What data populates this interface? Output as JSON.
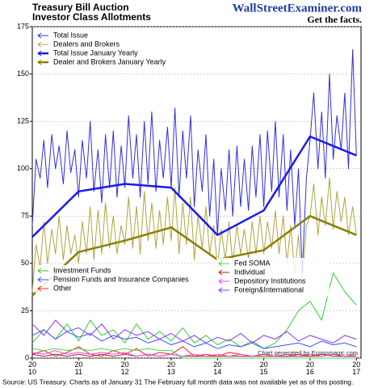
{
  "title": "Treasury Bill Auction",
  "subtitle": "Investor Class Allotments",
  "site": "WallStreetExaminer.com",
  "tagline": "Get the facts.",
  "watermark": "Chart generated by Economagic.com",
  "source": "Source: US Treasury. Charts as of January 31 The February full month data was not available yet as of this posting.",
  "chart_data": {
    "type": "line",
    "x": [
      2010,
      2010.08,
      2010.17,
      2010.25,
      2010.33,
      2010.42,
      2010.5,
      2010.58,
      2010.67,
      2010.75,
      2010.83,
      2010.92,
      2011,
      2011.08,
      2011.17,
      2011.25,
      2011.33,
      2011.42,
      2011.5,
      2011.58,
      2011.67,
      2011.75,
      2011.83,
      2011.92,
      2012,
      2012.08,
      2012.17,
      2012.25,
      2012.33,
      2012.42,
      2012.5,
      2012.58,
      2012.67,
      2012.75,
      2012.83,
      2012.92,
      2013,
      2013.08,
      2013.17,
      2013.25,
      2013.33,
      2013.42,
      2013.5,
      2013.58,
      2013.67,
      2013.75,
      2013.83,
      2013.92,
      2014,
      2014.08,
      2014.17,
      2014.25,
      2014.33,
      2014.42,
      2014.5,
      2014.58,
      2014.67,
      2014.75,
      2014.83,
      2014.92,
      2015,
      2015.08,
      2015.17,
      2015.25,
      2015.33,
      2015.42,
      2015.5,
      2015.58,
      2015.67,
      2015.75,
      2015.83,
      2015.92,
      2016,
      2016.08,
      2016.17,
      2016.25,
      2016.33,
      2016.42,
      2016.5,
      2016.58,
      2016.67,
      2016.75,
      2016.83,
      2016.92,
      2017
    ],
    "xlim": [
      2010,
      2017.1
    ],
    "xticks": [
      {
        "value": 2010,
        "label": "20\n10"
      },
      {
        "value": 2011,
        "label": "20\n11"
      },
      {
        "value": 2012,
        "label": "20\n12"
      },
      {
        "value": 2013,
        "label": "20\n13"
      },
      {
        "value": 2014,
        "label": "20\n14"
      },
      {
        "value": 2015,
        "label": "20\n15"
      },
      {
        "value": 2016,
        "label": "20\n16"
      },
      {
        "value": 2017,
        "label": "20\n17"
      }
    ],
    "ylim": [
      0,
      175
    ],
    "yticks": [
      0,
      25,
      50,
      75,
      100,
      125,
      150,
      175
    ],
    "grid": true,
    "series": [
      {
        "name": "Total Issue",
        "color": "#3030e0",
        "width": 1,
        "values": [
          70,
          105,
          95,
          115,
          90,
          118,
          100,
          112,
          92,
          120,
          98,
          110,
          85,
          115,
          95,
          125,
          88,
          110,
          82,
          118,
          90,
          120,
          85,
          112,
          90,
          128,
          95,
          118,
          85,
          125,
          92,
          130,
          88,
          115,
          95,
          122,
          90,
          132,
          85,
          120,
          95,
          128,
          80,
          110,
          88,
          118,
          75,
          105,
          65,
          100,
          78,
          110,
          75,
          112,
          80,
          105,
          78,
          112,
          85,
          118,
          80,
          120,
          88,
          125,
          85,
          118,
          78,
          110,
          70,
          100,
          45,
          95,
          115,
          140,
          100,
          130,
          95,
          150,
          105,
          128,
          110,
          140,
          100,
          163,
          107
        ]
      },
      {
        "name": "Dealers and Brokers",
        "color": "#b0a440",
        "width": 1,
        "values": [
          35,
          60,
          48,
          72,
          50,
          68,
          55,
          75,
          52,
          70,
          55,
          65,
          50,
          72,
          55,
          80,
          52,
          78,
          55,
          82,
          58,
          75,
          55,
          70,
          60,
          85,
          58,
          80,
          55,
          88,
          62,
          82,
          58,
          78,
          60,
          85,
          62,
          90,
          55,
          82,
          60,
          85,
          52,
          75,
          58,
          80,
          55,
          70,
          48,
          68,
          52,
          72,
          50,
          70,
          55,
          68,
          52,
          72,
          55,
          75,
          55,
          72,
          58,
          78,
          55,
          75,
          50,
          70,
          45,
          65,
          40,
          70,
          75,
          92,
          65,
          85,
          70,
          95,
          68,
          88,
          72,
          85,
          65,
          80,
          65
        ]
      },
      {
        "name": "Total Issue January Yearly",
        "color": "#1a1aee",
        "width": 2.5,
        "x": [
          2010,
          2011,
          2012,
          2013,
          2014,
          2015,
          2016,
          2017
        ],
        "values": [
          64,
          88,
          92,
          90,
          65,
          78,
          117,
          107
        ]
      },
      {
        "name": "Dealer and Brokers January Yearly",
        "color": "#8a8000",
        "width": 2.5,
        "x": [
          2010,
          2011,
          2012,
          2013,
          2014,
          2015,
          2016,
          2017
        ],
        "values": [
          33,
          56,
          62,
          69,
          52,
          57,
          75,
          65
        ]
      },
      {
        "name": "Investment Funds",
        "color": "#33cc33",
        "width": 1,
        "x": [
          2010,
          2010.25,
          2010.5,
          2010.75,
          2011,
          2011.25,
          2011.5,
          2011.75,
          2012,
          2012.25,
          2012.5,
          2012.75,
          2013,
          2013.25,
          2013.5,
          2013.75,
          2014,
          2014.25,
          2014.5,
          2014.75,
          2015,
          2015.25,
          2015.5,
          2015.75,
          2016,
          2016.25,
          2016.5,
          2016.75,
          2017
        ],
        "values": [
          8,
          15,
          10,
          18,
          9,
          20,
          12,
          15,
          8,
          18,
          10,
          14,
          9,
          16,
          8,
          12,
          7,
          10,
          6,
          9,
          5,
          8,
          15,
          25,
          30,
          20,
          45,
          35,
          28
        ]
      },
      {
        "name": "Pension Funds and Insurance Companies",
        "color": "#3355ff",
        "width": 1,
        "x": [
          2010,
          2010.25,
          2010.5,
          2010.75,
          2011,
          2011.25,
          2011.5,
          2011.75,
          2012,
          2012.25,
          2012.5,
          2012.75,
          2013,
          2013.25,
          2013.5,
          2013.75,
          2014,
          2014.25,
          2014.5,
          2014.75,
          2015,
          2015.25,
          2015.5,
          2015.75,
          2016,
          2016.25,
          2016.5,
          2016.75,
          2017
        ],
        "values": [
          12,
          15,
          10,
          14,
          11,
          13,
          9,
          12,
          10,
          11,
          8,
          10,
          7,
          9,
          6,
          8,
          5,
          7,
          6,
          8,
          5,
          6,
          7,
          8,
          6,
          9,
          7,
          8,
          6
        ]
      },
      {
        "name": "Other",
        "color": "#ff2222",
        "width": 1,
        "x": [
          2010,
          2010.25,
          2010.5,
          2010.75,
          2011,
          2011.25,
          2011.5,
          2011.75,
          2012,
          2012.25,
          2012.5,
          2012.75,
          2013,
          2013.25,
          2013.5,
          2013.75,
          2014,
          2014.25,
          2014.5,
          2014.75,
          2015,
          2015.25,
          2015.5,
          2015.75,
          2016,
          2016.25,
          2016.5,
          2016.75,
          2017
        ],
        "values": [
          2,
          4,
          1,
          3,
          6,
          2,
          1,
          4,
          2,
          5,
          1,
          3,
          2,
          6,
          1,
          2,
          1,
          3,
          2,
          1,
          2,
          1,
          1,
          2,
          1,
          1,
          2,
          1,
          1
        ]
      },
      {
        "name": "Fed SOMA",
        "color": "#44dd44",
        "width": 1,
        "x": [
          2010,
          2010.25,
          2010.5,
          2010.75,
          2011,
          2011.25,
          2011.5,
          2011.75,
          2012,
          2012.25,
          2012.5,
          2012.75,
          2013,
          2013.25,
          2013.5,
          2013.75,
          2014,
          2014.25,
          2014.5,
          2014.75,
          2015,
          2015.25,
          2015.5,
          2015.75,
          2016,
          2016.25,
          2016.5,
          2016.75,
          2017
        ],
        "values": [
          5,
          4,
          5,
          4,
          5,
          4,
          5,
          4,
          5,
          4,
          5,
          4,
          4,
          0,
          0,
          0,
          0,
          0,
          0,
          0,
          0,
          0,
          0,
          0,
          0,
          0,
          0,
          0,
          0
        ]
      },
      {
        "name": "Individual",
        "color": "#aa2222",
        "width": 1,
        "x": [
          2010,
          2010.25,
          2010.5,
          2010.75,
          2011,
          2011.25,
          2011.5,
          2011.75,
          2012,
          2012.25,
          2012.5,
          2012.75,
          2013,
          2013.25,
          2013.5,
          2013.75,
          2014,
          2014.25,
          2014.5,
          2014.75,
          2015,
          2015.25,
          2015.5,
          2015.75,
          2016,
          2016.25,
          2016.5,
          2016.75,
          2017
        ],
        "values": [
          2,
          1,
          2,
          1,
          2,
          1,
          2,
          1,
          2,
          1,
          2,
          1,
          2,
          1,
          1,
          1,
          1,
          1,
          1,
          1,
          1,
          1,
          1,
          1,
          1,
          2,
          1,
          1,
          1
        ]
      },
      {
        "name": "Depository Institutions",
        "color": "#ee44ee",
        "width": 1,
        "x": [
          2010,
          2010.25,
          2010.5,
          2010.75,
          2011,
          2011.25,
          2011.5,
          2011.75,
          2012,
          2012.25,
          2012.5,
          2012.75,
          2013,
          2013.25,
          2013.5,
          2013.75,
          2014,
          2014.25,
          2014.5,
          2014.75,
          2015,
          2015.25,
          2015.5,
          2015.75,
          2016,
          2016.25,
          2016.5,
          2016.75,
          2017
        ],
        "values": [
          3,
          2,
          4,
          2,
          3,
          2,
          3,
          2,
          3,
          1,
          2,
          1,
          2,
          1,
          2,
          1,
          2,
          1,
          2,
          1,
          2,
          1,
          2,
          1,
          2,
          1,
          2,
          1,
          2
        ]
      },
      {
        "name": "Foreign&International",
        "color": "#8833ff",
        "width": 1,
        "x": [
          2010,
          2010.25,
          2010.5,
          2010.75,
          2011,
          2011.25,
          2011.5,
          2011.75,
          2012,
          2012.25,
          2012.5,
          2012.75,
          2013,
          2013.25,
          2013.5,
          2013.75,
          2014,
          2014.25,
          2014.5,
          2014.75,
          2015,
          2015.25,
          2015.5,
          2015.75,
          2016,
          2016.25,
          2016.5,
          2016.75,
          2017
        ],
        "values": [
          18,
          12,
          20,
          14,
          16,
          12,
          18,
          10,
          15,
          12,
          14,
          10,
          13,
          9,
          12,
          8,
          11,
          9,
          13,
          8,
          12,
          10,
          14,
          9,
          12,
          10,
          8,
          12,
          10
        ]
      }
    ]
  }
}
